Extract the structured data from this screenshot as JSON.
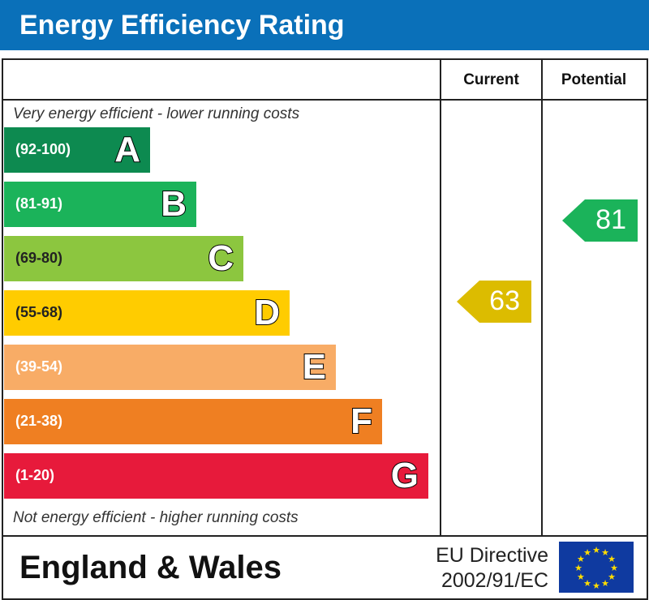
{
  "title": "Energy Efficiency Rating",
  "columns": {
    "current": "Current",
    "potential": "Potential"
  },
  "top_note": "Very energy efficient - lower running costs",
  "bottom_note": "Not energy efficient - higher running costs",
  "region": "England & Wales",
  "directive": {
    "line1": "EU Directive",
    "line2": "2002/91/EC"
  },
  "chart_data": {
    "type": "bar",
    "bands": [
      {
        "letter": "A",
        "range": "(92-100)",
        "color": "#0d8a50"
      },
      {
        "letter": "B",
        "range": "(81-91)",
        "color": "#1bb35a"
      },
      {
        "letter": "C",
        "range": "(69-80)",
        "color": "#8cc63f"
      },
      {
        "letter": "D",
        "range": "(55-68)",
        "color": "#ffcc00"
      },
      {
        "letter": "E",
        "range": "(39-54)",
        "color": "#f8ac66"
      },
      {
        "letter": "F",
        "range": "(21-38)",
        "color": "#ef7f22"
      },
      {
        "letter": "G",
        "range": "(1-20)",
        "color": "#e71a3b"
      }
    ],
    "current": {
      "value": 63,
      "band": "D",
      "color": "#dcbc00"
    },
    "potential": {
      "value": 81,
      "band": "B",
      "color": "#1bb35a"
    }
  }
}
